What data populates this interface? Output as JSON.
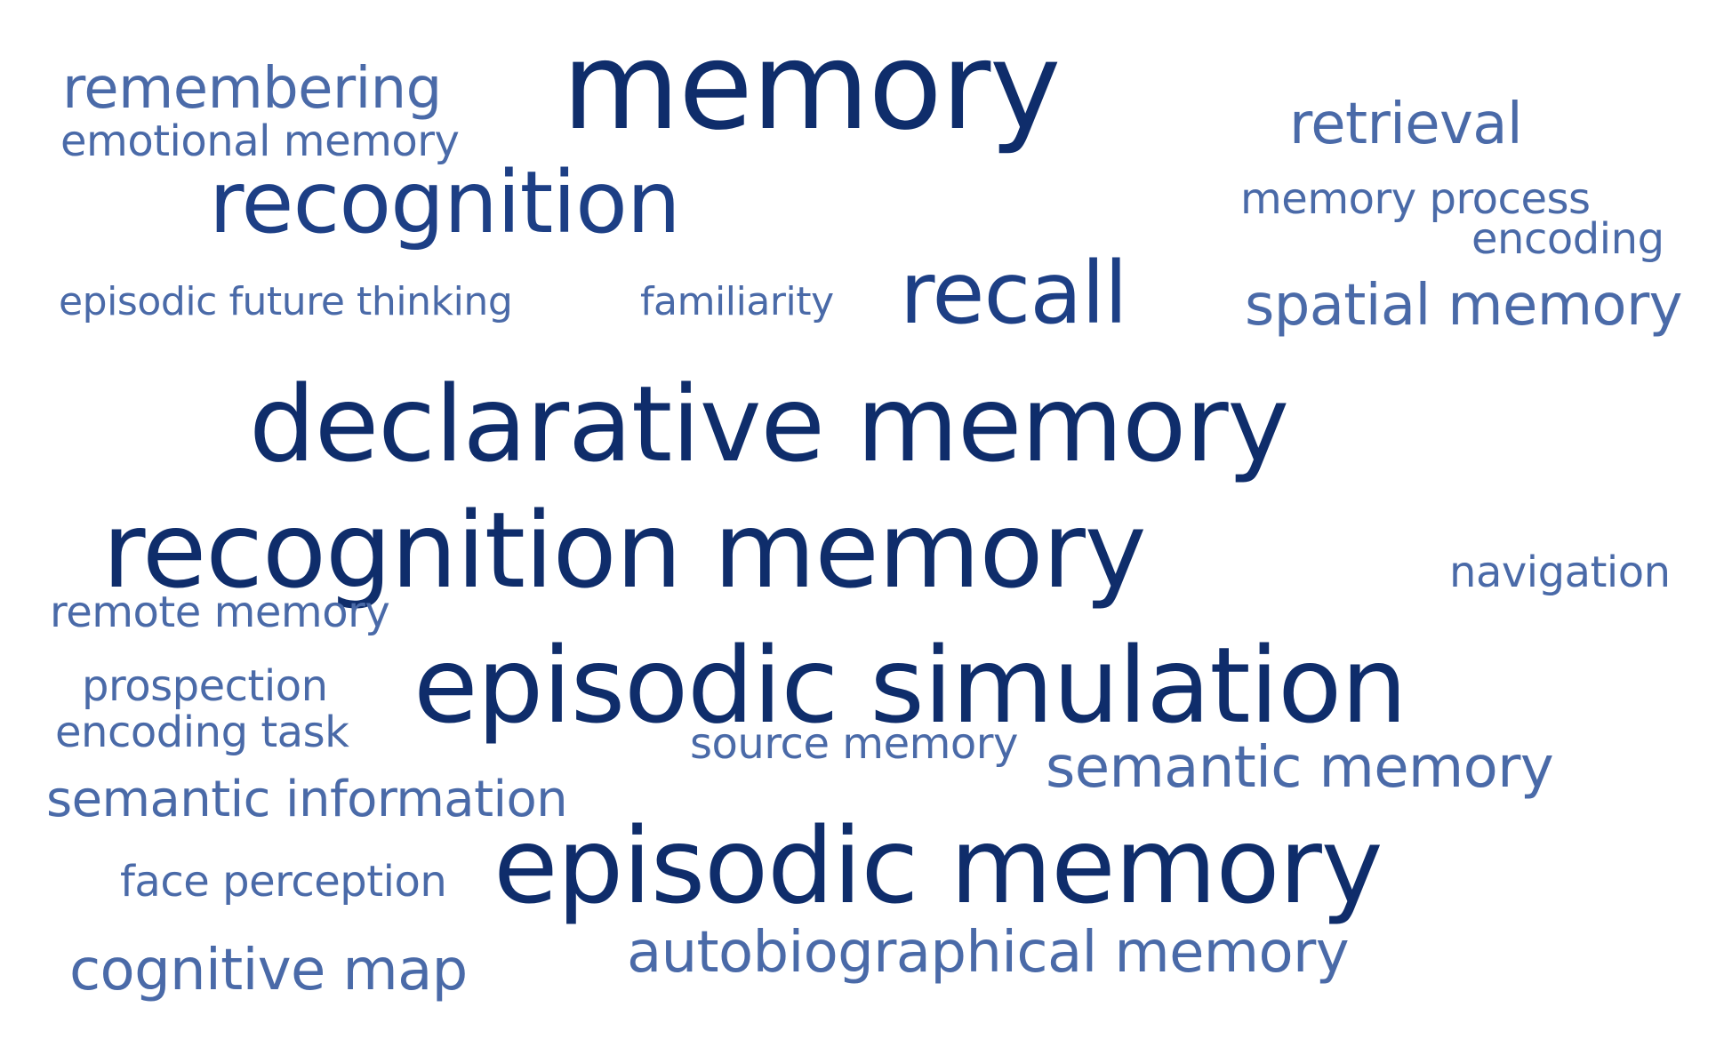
{
  "colors": {
    "dark": "#0f2d6b",
    "mid": "#1d3f85",
    "light": "#4a6aa8"
  },
  "words": {
    "memory": "memory",
    "remembering": "remembering",
    "emotional_memory": "emotional memory",
    "retrieval": "retrieval",
    "recognition": "recognition",
    "memory_process": "memory process",
    "encoding": "encoding",
    "episodic_future_thinking": "episodic future thinking",
    "familiarity": "familiarity",
    "recall": "recall",
    "spatial_memory": "spatial memory",
    "declarative_memory": "declarative memory",
    "recognition_memory": "recognition memory",
    "navigation": "navigation",
    "remote_memory": "remote memory",
    "prospection": "prospection",
    "episodic_simulation": "episodic simulation",
    "encoding_task": "encoding task",
    "source_memory": "source memory",
    "semantic_memory": "semantic memory",
    "semantic_information": "semantic information",
    "face_perception": "face perception",
    "episodic_memory": "episodic memory",
    "cognitive_map": "cognitive map",
    "autobiographical_memory": "autobiographical memory"
  }
}
